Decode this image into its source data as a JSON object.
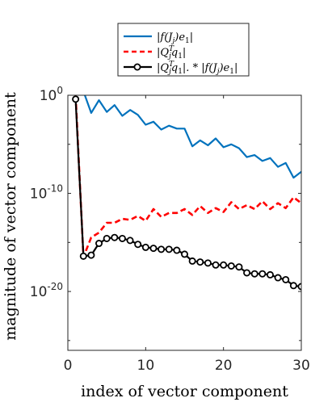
{
  "chart_data": {
    "type": "line",
    "title": "",
    "xlabel": "index of vector component",
    "ylabel": "magnitude of vector component",
    "xlim": [
      0,
      30
    ],
    "ylim_log10": [
      -26,
      0
    ],
    "yscale": "log",
    "xticks": [
      {
        "value": 0,
        "label": "0"
      },
      {
        "value": 10,
        "label": "10"
      },
      {
        "value": 20,
        "label": "20"
      },
      {
        "value": 30,
        "label": "30"
      }
    ],
    "yticks": [
      {
        "exp": 0,
        "base": "10",
        "sup": "0"
      },
      {
        "exp": -10,
        "base": "10",
        "sup": "-10"
      },
      {
        "exp": -20,
        "base": "10",
        "sup": "-20"
      }
    ],
    "grid": false,
    "legend_position": "top-center-outside",
    "x": [
      1,
      2,
      3,
      4,
      5,
      6,
      7,
      8,
      9,
      10,
      11,
      12,
      13,
      14,
      15,
      16,
      17,
      18,
      19,
      20,
      21,
      22,
      23,
      24,
      25,
      26,
      27,
      28,
      29,
      30
    ],
    "series": [
      {
        "name": "|f(J_j)e_1|",
        "color": "#0072BD",
        "style": "solid",
        "marker": "none",
        "log10_values": [
          0.4,
          0.4,
          -1.8,
          -0.5,
          -1.7,
          -1.0,
          -2.1,
          -1.5,
          -2.0,
          -3.0,
          -2.7,
          -3.5,
          -3.1,
          -3.4,
          -3.4,
          -5.2,
          -4.6,
          -5.1,
          -4.4,
          -5.3,
          -5.0,
          -5.4,
          -6.3,
          -6.1,
          -6.7,
          -6.4,
          -7.3,
          -6.9,
          -8.4,
          -7.8
        ]
      },
      {
        "name": "|Q_j^T q_1|",
        "color": "#FF0000",
        "style": "dashed",
        "marker": "none",
        "log10_values": [
          0.0,
          -16.5,
          -14.5,
          -14.0,
          -13.0,
          -13.0,
          -12.6,
          -12.7,
          -12.3,
          -12.8,
          -11.6,
          -12.4,
          -12.0,
          -12.0,
          -11.6,
          -12.2,
          -11.3,
          -12.0,
          -11.5,
          -11.9,
          -10.9,
          -11.6,
          -11.2,
          -11.6,
          -10.8,
          -11.6,
          -11.0,
          -11.5,
          -10.4,
          -11.0
        ]
      },
      {
        "name": "|Q_j^T q_1|.*|f(J_j)e_1|",
        "color": "#000000",
        "style": "solid",
        "marker": "circle",
        "log10_values": [
          -0.4,
          -16.4,
          -16.3,
          -15.1,
          -14.6,
          -14.5,
          -14.6,
          -14.8,
          -15.2,
          -15.5,
          -15.6,
          -15.7,
          -15.7,
          -15.8,
          -16.2,
          -16.9,
          -17.0,
          -17.1,
          -17.3,
          -17.3,
          -17.4,
          -17.5,
          -18.1,
          -18.2,
          -18.2,
          -18.3,
          -18.6,
          -18.8,
          -19.4,
          -19.5
        ]
      }
    ]
  }
}
